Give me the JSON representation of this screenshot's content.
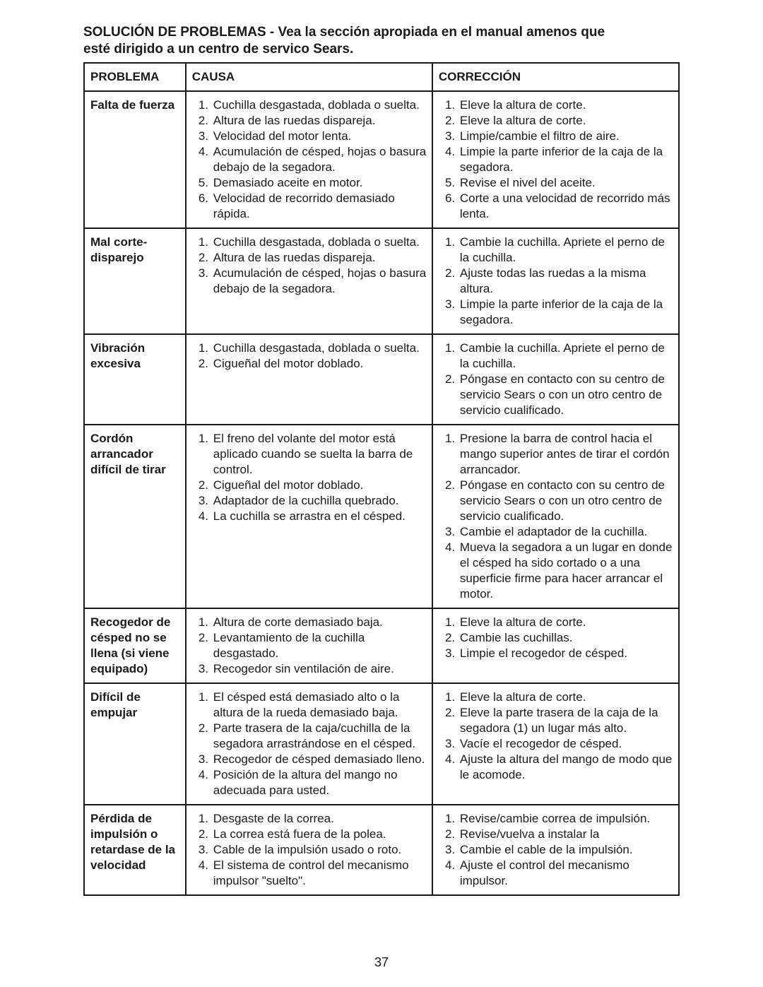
{
  "heading_line1": "SOLUCIÓN DE PROBLEMAS - Vea la sección apropiada en el manual amenos que",
  "heading_line2": "esté dirigido a un centro de servico Sears.",
  "headers": {
    "problema": "PROBLEMA",
    "causa": "CAUSA",
    "correccion": "CORRECCIÓN"
  },
  "rows": [
    {
      "problema": "Falta de fuerza",
      "causas": [
        "Cuchilla desgastada, doblada o suelta.",
        "Altura de las ruedas dispareja.",
        "Velocidad del motor lenta.",
        "Acumulación de césped, hojas o basura debajo de la segadora.",
        "Demasiado aceite en motor.",
        "Velocidad de recorrido demasiado rápida."
      ],
      "correcciones": [
        "Eleve la altura de corte.",
        "Eleve la altura de corte.",
        "Limpie/cambie el filtro de aire.",
        "Limpie la parte inferior de la caja de la segadora.",
        "Revise el nivel del aceite.",
        "Corte a una velocidad de recorrido más lenta."
      ]
    },
    {
      "problema": "Mal corte- disparejo",
      "causas": [
        "Cuchilla desgastada, doblada o suelta.",
        "Altura de las ruedas dispareja.",
        "Acumulación de césped, hojas o basura debajo de la segadora."
      ],
      "correcciones": [
        "Cambie la cuchilla. Apriete el perno de la cuchilla.",
        "Ajuste todas las ruedas a la misma altura.",
        "Limpie la parte inferior de la caja de la segadora."
      ]
    },
    {
      "problema": "Vibración excesiva",
      "causas": [
        "Cuchilla desgastada, doblada o suelta.",
        "Cigueñal del motor doblado."
      ],
      "correcciones": [
        "Cambie la cuchilla. Apriete el perno de la cuchilla.",
        "Póngase en contacto con su centro de servicio Sears o con un otro centro de servicio cualificado."
      ]
    },
    {
      "problema": "Cordón arrancador difícil de tirar",
      "causas": [
        "El freno del volante del motor está aplicado cuando se suelta la barra de control.",
        "Cigueñal del motor doblado.",
        "Adaptador de la cuchilla quebrado.",
        "La cuchilla se arrastra en el césped."
      ],
      "correcciones": [
        "Presione la barra de control hacia el mango superior antes de tirar el cordón arrancador.",
        "Póngase en contacto con su centro de servicio Sears o con un otro centro de servicio cualificado.",
        "Cambie el adaptador de la cuchilla.",
        "Mueva la segadora a un lugar en donde el césped ha sido cortado o a una superficie firme para hacer arrancar el motor."
      ]
    },
    {
      "problema": "Recogedor de césped no se llena (si viene equipado)",
      "causas": [
        "Altura de corte demasiado baja.",
        "Levantamiento de la cuchilla desgastado.",
        "Recogedor sin ventilación de aire."
      ],
      "correcciones": [
        "Eleve la altura de corte.",
        "Cambie las cuchillas.",
        "Limpie el recogedor de césped."
      ]
    },
    {
      "problema": "Difícil de empujar",
      "causas": [
        "El césped está demasiado alto o la altura de la rueda demasiado baja.",
        "Parte trasera de la caja/cuchilla de la segadora arrastrándose en el césped.",
        "Recogedor de césped demasiado lleno.",
        "Posición de la altura del mango no adecuada para usted."
      ],
      "correcciones": [
        "Eleve la altura de corte.",
        "Eleve la parte trasera de la caja de la segadora (1) un lugar más alto.",
        "Vacíe el recogedor de césped.",
        "Ajuste la altura del mango de modo que le acomode."
      ]
    },
    {
      "problema": "Pérdida de impulsión o retardase de la velocidad",
      "causas": [
        "Desgaste de la correa.",
        "La correa está fuera de la polea.",
        "Cable de la impulsión usado o roto.",
        "El sistema de control del mecanismo impulsor \"suelto\"."
      ],
      "correcciones": [
        "Revise/cambie correa de impulsión.",
        "Revise/vuelva a instalar la",
        "Cambie  el cable de la impulsión.",
        "Ajuste el control del mecanismo impulsor."
      ]
    }
  ],
  "page_number": "37"
}
